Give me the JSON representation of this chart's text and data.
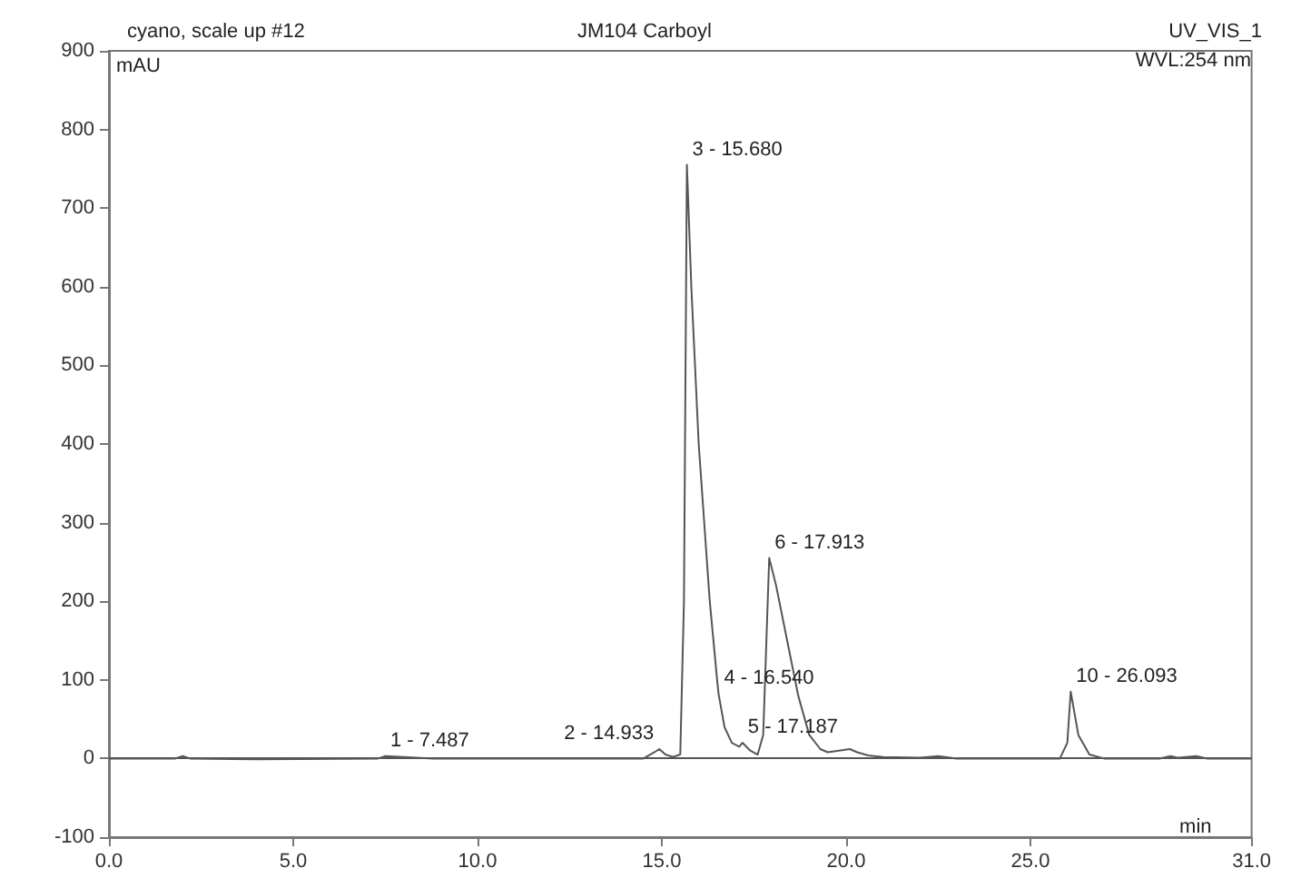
{
  "chart_data": {
    "type": "line",
    "title": "cyano, scale up #12",
    "subtitle": "JM104 Carboyl",
    "xlabel": "min",
    "ylabel": "mAU",
    "annotations": [
      "UV_VIS_1",
      "WVL:254 nm",
      {
        "text": "1 - 7.487",
        "x": 7.487,
        "y": 3
      },
      {
        "text": "2 - 14.933",
        "x": 14.933,
        "y": 12
      },
      {
        "text": "3 - 15.680",
        "x": 15.68,
        "y": 755
      },
      {
        "text": "4 - 16.540",
        "x": 16.54,
        "y": 82
      },
      {
        "text": "5 - 17.187",
        "x": 17.187,
        "y": 20
      },
      {
        "text": "6 - 17.913",
        "x": 17.913,
        "y": 255
      },
      {
        "text": "10 - 26.093",
        "x": 26.093,
        "y": 85
      }
    ],
    "x": [
      0,
      1.8,
      2.0,
      2.2,
      4,
      7.3,
      7.5,
      8,
      8.8,
      14.5,
      14.8,
      14.93,
      15.1,
      15.3,
      15.5,
      15.6,
      15.68,
      15.8,
      16.0,
      16.3,
      16.5,
      16.54,
      16.7,
      16.9,
      17.1,
      17.187,
      17.4,
      17.6,
      17.75,
      17.913,
      18.1,
      18.4,
      18.7,
      19.0,
      19.3,
      19.5,
      19.8,
      20.1,
      20.3,
      20.6,
      21,
      22,
      22.5,
      23,
      25.8,
      26.0,
      26.093,
      26.3,
      26.6,
      27,
      28.5,
      28.8,
      29.0,
      29.5,
      29.8,
      31
    ],
    "series": [
      {
        "color": "#555555",
        "values": [
          0,
          0,
          3,
          0,
          -1,
          0,
          3,
          2,
          0,
          0,
          8,
          12,
          5,
          2,
          5,
          200,
          755,
          600,
          400,
          200,
          100,
          82,
          40,
          20,
          15,
          20,
          10,
          5,
          30,
          255,
          220,
          150,
          80,
          30,
          12,
          8,
          10,
          12,
          8,
          4,
          2,
          1,
          3,
          0,
          0,
          20,
          85,
          30,
          5,
          0,
          0,
          3,
          1,
          3,
          0,
          0
        ]
      }
    ],
    "xlim": [
      0,
      31
    ],
    "xticks": [
      {
        "value": 0,
        "label": "0.0"
      },
      {
        "value": 5,
        "label": "5.0"
      },
      {
        "value": 10,
        "label": "10.0"
      },
      {
        "value": 15,
        "label": "15.0"
      },
      {
        "value": 20,
        "label": "20.0"
      },
      {
        "value": 25,
        "label": "25.0"
      },
      {
        "value": 31,
        "label": "31.0"
      }
    ],
    "ylim": [
      -100,
      900
    ],
    "yticks": [
      -100,
      0,
      100,
      200,
      300,
      400,
      500,
      600,
      700,
      800,
      900
    ],
    "ref_lines": [
      {
        "axis": "y",
        "value": 0,
        "color": "#555555"
      }
    ],
    "grid": false,
    "marker": "none",
    "line_style": "solid"
  }
}
